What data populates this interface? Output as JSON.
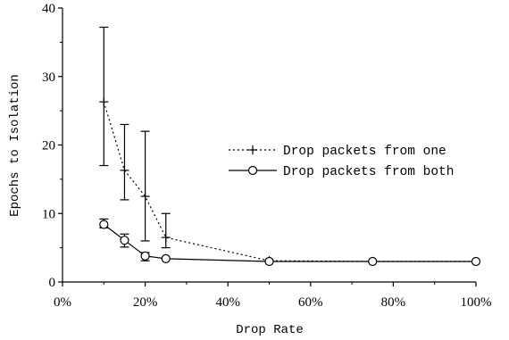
{
  "chart_data": {
    "type": "line",
    "xlabel": "Drop Rate",
    "ylabel": "Epochs to Isolation",
    "xlim": [
      0,
      100
    ],
    "ylim": [
      0,
      40
    ],
    "xticks": [
      0,
      20,
      40,
      60,
      80,
      100
    ],
    "xtick_labels": [
      "0%",
      "20%",
      "40%",
      "60%",
      "80%",
      "100%"
    ],
    "yticks": [
      0,
      10,
      20,
      30,
      40
    ],
    "ytick_labels": [
      "0",
      "10",
      "20",
      "30",
      "40"
    ],
    "grid": false,
    "legend_position": "right",
    "series": [
      {
        "name": "Drop packets from one",
        "line_style": "dotted",
        "marker": "plus",
        "x": [
          10,
          15,
          20,
          25,
          50,
          75,
          100
        ],
        "y": [
          26.3,
          16.3,
          12.5,
          6.5,
          3.1,
          3.0,
          3.0
        ],
        "err_low": [
          17.0,
          12.0,
          6.0,
          5.0,
          3.0,
          3.0,
          3.0
        ],
        "err_high": [
          37.2,
          23.0,
          22.0,
          10.0,
          3.2,
          3.0,
          3.0
        ]
      },
      {
        "name": "Drop packets from both",
        "line_style": "solid",
        "marker": "circle",
        "x": [
          10,
          15,
          20,
          25,
          50,
          75,
          100
        ],
        "y": [
          8.4,
          6.1,
          3.8,
          3.4,
          3.0,
          3.0,
          3.0
        ],
        "err_low": [
          7.9,
          5.1,
          3.1,
          3.4,
          3.0,
          3.0,
          3.0
        ],
        "err_high": [
          9.2,
          7.0,
          4.3,
          3.4,
          3.0,
          3.0,
          3.0
        ]
      }
    ]
  }
}
